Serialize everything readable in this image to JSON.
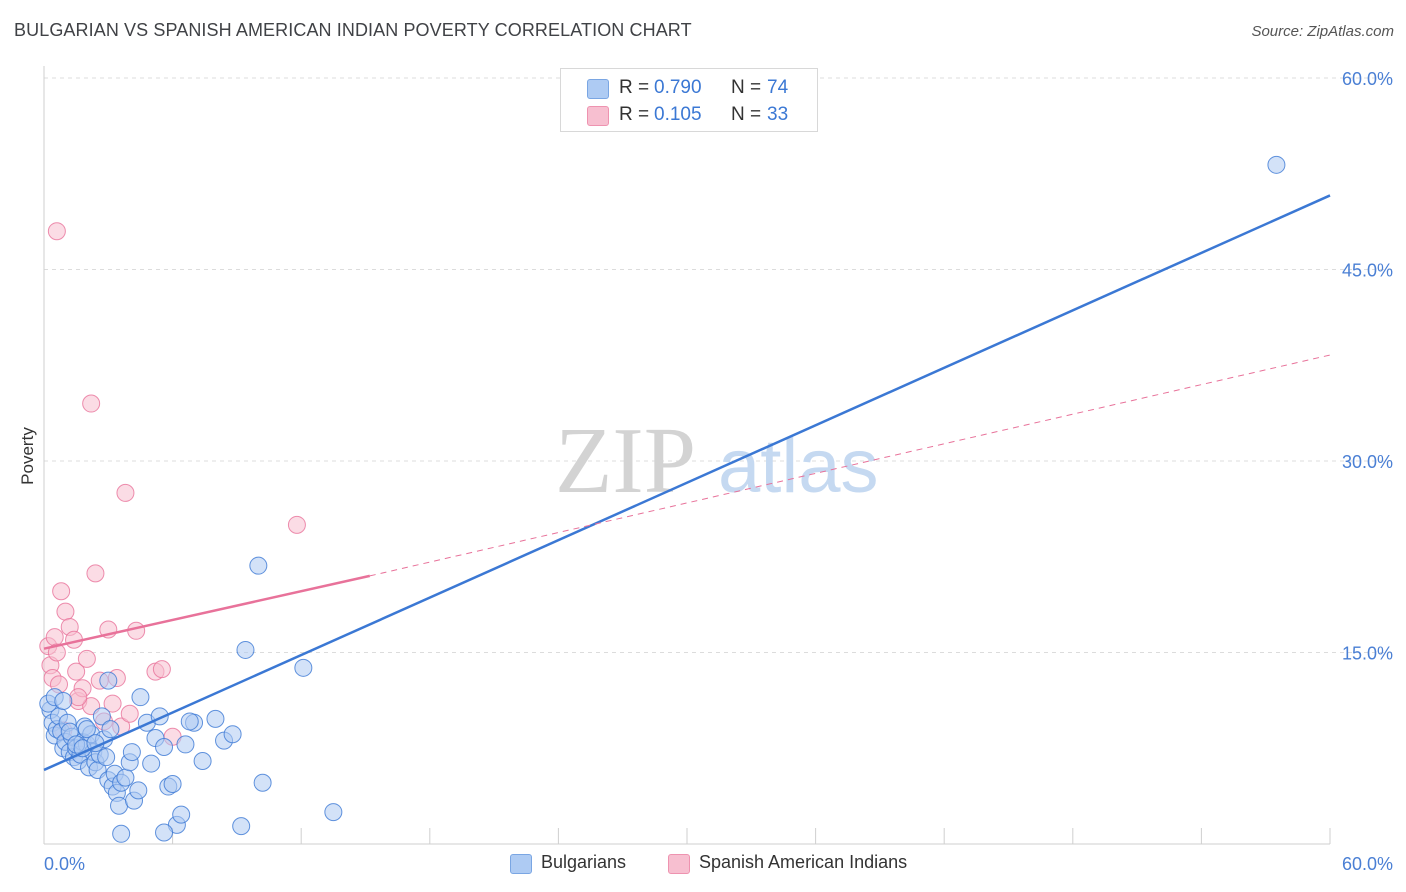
{
  "title": "BULGARIAN VS SPANISH AMERICAN INDIAN POVERTY CORRELATION CHART",
  "source": "Source: ZipAtlas.com",
  "colors": {
    "blue": "#3b78d4",
    "blue_fill": "#aecbf3",
    "pink": "#e8729a",
    "pink_fill": "#f7bfd0",
    "grid": "#dcdcdc",
    "axis_label": "#4a7fd4"
  },
  "legend": {
    "series1": {
      "r_label": "R = ",
      "r_value": "0.790",
      "n_label": "N = ",
      "n_value": "74"
    },
    "series2": {
      "r_label": "R = ",
      "r_value": "0.105",
      "n_label": "N = ",
      "n_value": "33"
    }
  },
  "bottom_legend": {
    "series1": "Bulgarians",
    "series2": "Spanish American Indians"
  },
  "watermark": {
    "part1": "ZIP",
    "part2": "atlas"
  },
  "chart_data": {
    "type": "scatter",
    "xlabel": "",
    "ylabel": "Poverty",
    "xlim": [
      0,
      60
    ],
    "ylim": [
      0,
      60
    ],
    "x_tick_labels": [
      "0.0%",
      "60.0%"
    ],
    "y_ticks": [
      15,
      30,
      45,
      60
    ],
    "y_tick_labels": [
      "15.0%",
      "30.0%",
      "45.0%",
      "60.0%"
    ],
    "series": [
      {
        "name": "Bulgarians",
        "R": 0.79,
        "N": 74,
        "trend": {
          "x": [
            0,
            60
          ],
          "y": [
            5.8,
            50.8
          ],
          "style": "solid"
        },
        "points": [
          [
            0.3,
            10.5
          ],
          [
            0.4,
            9.5
          ],
          [
            0.5,
            8.5
          ],
          [
            0.6,
            9
          ],
          [
            0.7,
            10
          ],
          [
            0.8,
            8.8
          ],
          [
            0.9,
            7.5
          ],
          [
            1.0,
            8
          ],
          [
            1.1,
            9.5
          ],
          [
            1.2,
            7.2
          ],
          [
            1.3,
            8.4
          ],
          [
            1.4,
            6.8
          ],
          [
            1.5,
            7.5
          ],
          [
            1.6,
            6.5
          ],
          [
            1.7,
            7
          ],
          [
            1.8,
            8
          ],
          [
            1.9,
            9.2
          ],
          [
            2.0,
            7.8
          ],
          [
            2.1,
            6
          ],
          [
            2.2,
            8.6
          ],
          [
            2.3,
            7.2
          ],
          [
            2.4,
            6.4
          ],
          [
            2.5,
            5.8
          ],
          [
            2.6,
            7
          ],
          [
            2.7,
            10
          ],
          [
            2.8,
            8.2
          ],
          [
            2.9,
            6.8
          ],
          [
            3.0,
            5
          ],
          [
            3.1,
            9
          ],
          [
            3.2,
            4.5
          ],
          [
            3.3,
            5.5
          ],
          [
            3.4,
            4
          ],
          [
            3.5,
            3
          ],
          [
            3.6,
            4.8
          ],
          [
            3.8,
            5.2
          ],
          [
            4.0,
            6.4
          ],
          [
            4.1,
            7.2
          ],
          [
            4.2,
            3.4
          ],
          [
            4.4,
            4.2
          ],
          [
            4.5,
            11.5
          ],
          [
            4.8,
            9.5
          ],
          [
            5.0,
            6.3
          ],
          [
            5.2,
            8.3
          ],
          [
            5.4,
            10
          ],
          [
            5.6,
            7.6
          ],
          [
            5.8,
            4.5
          ],
          [
            6.0,
            4.7
          ],
          [
            6.2,
            1.5
          ],
          [
            6.4,
            2.3
          ],
          [
            6.6,
            7.8
          ],
          [
            7.0,
            9.5
          ],
          [
            7.4,
            6.5
          ],
          [
            8.0,
            9.8
          ],
          [
            8.4,
            8.1
          ],
          [
            8.8,
            8.6
          ],
          [
            9.2,
            1.4
          ],
          [
            9.4,
            15.2
          ],
          [
            10.2,
            4.8
          ],
          [
            12.1,
            13.8
          ],
          [
            13.5,
            2.5
          ],
          [
            0.2,
            11
          ],
          [
            0.5,
            11.5
          ],
          [
            0.9,
            11.2
          ],
          [
            1.2,
            8.8
          ],
          [
            1.5,
            7.8
          ],
          [
            1.8,
            7.5
          ],
          [
            2.0,
            9
          ],
          [
            2.4,
            7.9
          ],
          [
            3.0,
            12.8
          ],
          [
            3.6,
            0.8
          ],
          [
            5.6,
            0.9
          ],
          [
            6.8,
            9.6
          ],
          [
            10.0,
            21.8
          ],
          [
            57.5,
            53.2
          ]
        ]
      },
      {
        "name": "Spanish American Indians",
        "R": 0.105,
        "N": 33,
        "trend": {
          "x": [
            0,
            15.2
          ],
          "y": [
            15.3,
            21.0
          ],
          "style": "solid",
          "extension": {
            "x": [
              15.2,
              60
            ],
            "y": [
              21.0,
              38.3
            ],
            "style": "dashed"
          }
        },
        "points": [
          [
            0.2,
            15.5
          ],
          [
            0.3,
            14
          ],
          [
            0.4,
            13
          ],
          [
            0.5,
            16.2
          ],
          [
            0.6,
            15
          ],
          [
            0.7,
            12.5
          ],
          [
            0.8,
            19.8
          ],
          [
            1.0,
            18.2
          ],
          [
            1.2,
            17
          ],
          [
            1.4,
            16
          ],
          [
            1.5,
            13.5
          ],
          [
            1.6,
            11.2
          ],
          [
            1.8,
            12.2
          ],
          [
            2.0,
            14.5
          ],
          [
            2.2,
            10.8
          ],
          [
            2.4,
            21.2
          ],
          [
            2.6,
            12.8
          ],
          [
            2.8,
            9.6
          ],
          [
            3.0,
            16.8
          ],
          [
            3.2,
            11
          ],
          [
            3.4,
            13
          ],
          [
            3.6,
            9.2
          ],
          [
            3.8,
            27.5
          ],
          [
            4.0,
            10.2
          ],
          [
            4.3,
            16.7
          ],
          [
            5.2,
            13.5
          ],
          [
            5.5,
            13.7
          ],
          [
            1.6,
            11.5
          ],
          [
            0.6,
            48
          ],
          [
            2.2,
            34.5
          ],
          [
            11.8,
            25
          ],
          [
            6.0,
            8.4
          ],
          [
            0.9,
            8.9
          ]
        ]
      }
    ]
  }
}
